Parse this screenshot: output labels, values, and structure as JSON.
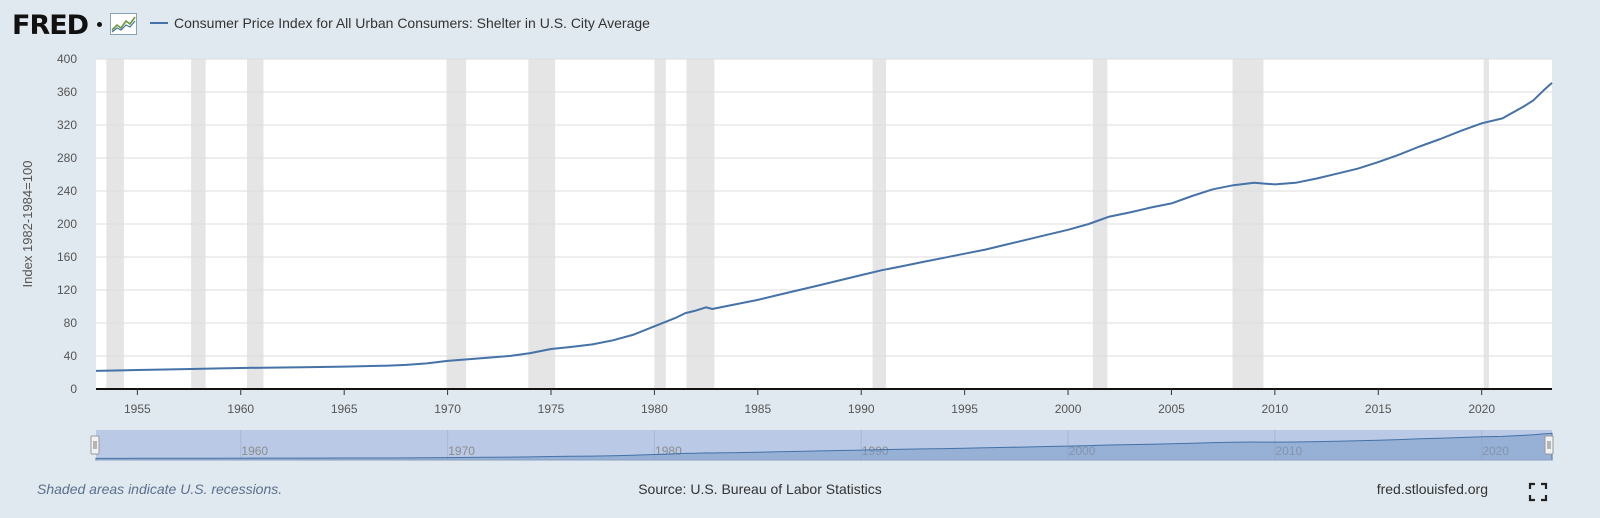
{
  "header": {
    "logo_text": "FRED",
    "series_title": "Consumer Price Index for All Urban Consumers: Shelter in U.S. City Average",
    "logo_icon": "line-graph-icon"
  },
  "footer": {
    "note": "Shaded areas indicate U.S. recessions.",
    "source": "Source: U.S. Bureau of Labor Statistics",
    "site": "fred.stlouisfed.org",
    "fullscreen_icon": "fullscreen-icon"
  },
  "colors": {
    "line": "#4572a7",
    "background": "#e1e9f0",
    "plot": "#ffffff",
    "recession": "#e5e5e5",
    "navigator_fill": "#b9c9e6",
    "navigator_series": "#7c9ac8"
  },
  "chart_data": {
    "type": "line",
    "title": "Consumer Price Index for All Urban Consumers: Shelter in U.S. City Average",
    "ylabel": "Index 1982-1984=100",
    "xlabel": "",
    "xlim": [
      1953.0,
      2023.4
    ],
    "ylim": [
      0,
      400
    ],
    "yticks": [
      0,
      40,
      80,
      120,
      160,
      200,
      240,
      280,
      320,
      360,
      400
    ],
    "xticks": [
      1955,
      1960,
      1965,
      1970,
      1975,
      1980,
      1985,
      1990,
      1995,
      2000,
      2005,
      2010,
      2015,
      2020
    ],
    "navigator_ticks": [
      1960,
      1970,
      1980,
      1990,
      2000,
      2010,
      2020
    ],
    "grid": true,
    "recessions": [
      [
        1953.5,
        1954.35
      ],
      [
        1957.6,
        1958.3
      ],
      [
        1960.3,
        1961.1
      ],
      [
        1969.95,
        1970.9
      ],
      [
        1973.9,
        1975.2
      ],
      [
        1980.0,
        1980.55
      ],
      [
        1981.55,
        1982.9
      ],
      [
        1990.55,
        1991.2
      ],
      [
        2001.2,
        2001.9
      ],
      [
        2007.95,
        2009.45
      ],
      [
        2020.1,
        2020.35
      ]
    ],
    "series": [
      {
        "x": [
          1953.0,
          1955,
          1957,
          1959,
          1961,
          1963,
          1965,
          1967,
          1968,
          1969,
          1970,
          1971,
          1972,
          1973,
          1974,
          1975,
          1976,
          1977,
          1978,
          1979,
          1980,
          1980.5,
          1981,
          1981.5,
          1982,
          1982.5,
          1982.8,
          1983,
          1984,
          1985,
          1986,
          1987,
          1988,
          1989,
          1990,
          1991,
          1992,
          1993,
          1994,
          1995,
          1996,
          1997,
          1998,
          1999,
          2000,
          2001,
          2002,
          2003,
          2004,
          2005,
          2006,
          2007,
          2008,
          2009,
          2009.5,
          2010,
          2011,
          2012,
          2013,
          2014,
          2015,
          2016,
          2017,
          2018,
          2019,
          2020,
          2021,
          2021.5,
          2022,
          2022.5,
          2023,
          2023.4
        ],
        "y": [
          22,
          23,
          24,
          25,
          25.8,
          26.4,
          27.2,
          28.3,
          29.2,
          31,
          34,
          36,
          38,
          40,
          43.5,
          48.5,
          51,
          54,
          59,
          66,
          76,
          81,
          86,
          92,
          95,
          99,
          97,
          98,
          103,
          108,
          114,
          120,
          126,
          132,
          138,
          144,
          149,
          154,
          159,
          164,
          169,
          175,
          181,
          187,
          193,
          200,
          209,
          214,
          220,
          225,
          234,
          242,
          247,
          250,
          249,
          248,
          250,
          255,
          261,
          267,
          275,
          284,
          294,
          303,
          313,
          322,
          328,
          335,
          342,
          350,
          362,
          371
        ]
      }
    ]
  }
}
